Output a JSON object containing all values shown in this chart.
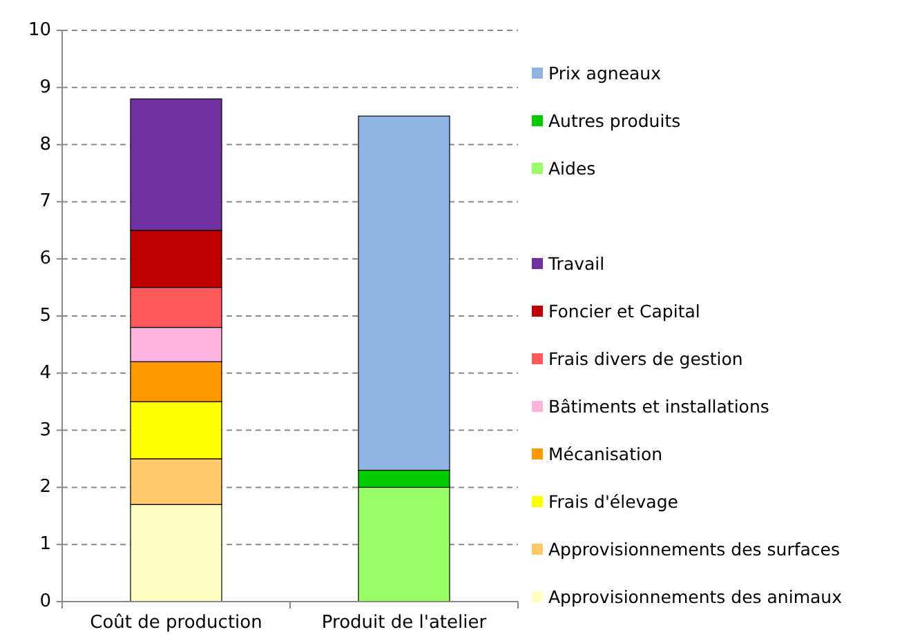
{
  "chart_data": {
    "type": "bar",
    "stacked": true,
    "categories": [
      "Coût de production",
      "Produit de l'atelier"
    ],
    "series": [
      {
        "name": "Approvisionnements des animaux",
        "color": "#ffffc4",
        "values": [
          1.7,
          null
        ]
      },
      {
        "name": "Approvisionnements des surfaces",
        "color": "#ffc869",
        "values": [
          0.8,
          null
        ]
      },
      {
        "name": "Frais d'élevage",
        "color": "#ffff00",
        "values": [
          1.0,
          null
        ]
      },
      {
        "name": "Mécanisation",
        "color": "#ff9900",
        "values": [
          0.7,
          null
        ]
      },
      {
        "name": "Bâtiments et installations",
        "color": "#ffb3de",
        "values": [
          0.6,
          null
        ]
      },
      {
        "name": "Frais divers de gestion",
        "color": "#ff5b5b",
        "values": [
          0.7,
          null
        ]
      },
      {
        "name": "Foncier et Capital",
        "color": "#c00000",
        "values": [
          1.0,
          null
        ]
      },
      {
        "name": "Travail",
        "color": "#7030a0",
        "values": [
          2.3,
          null
        ]
      },
      {
        "name": "Aides",
        "color": "#99ff66",
        "values": [
          null,
          2.0
        ]
      },
      {
        "name": "Autres produits",
        "color": "#00cc00",
        "values": [
          null,
          0.3
        ]
      },
      {
        "name": "Prix agneaux",
        "color": "#8db4e2",
        "values": [
          null,
          6.2
        ]
      }
    ],
    "ylim": [
      0,
      10
    ],
    "yticks": [
      0,
      1,
      2,
      3,
      4,
      5,
      6,
      7,
      8,
      9,
      10
    ],
    "grid": "y",
    "legend": "right"
  }
}
